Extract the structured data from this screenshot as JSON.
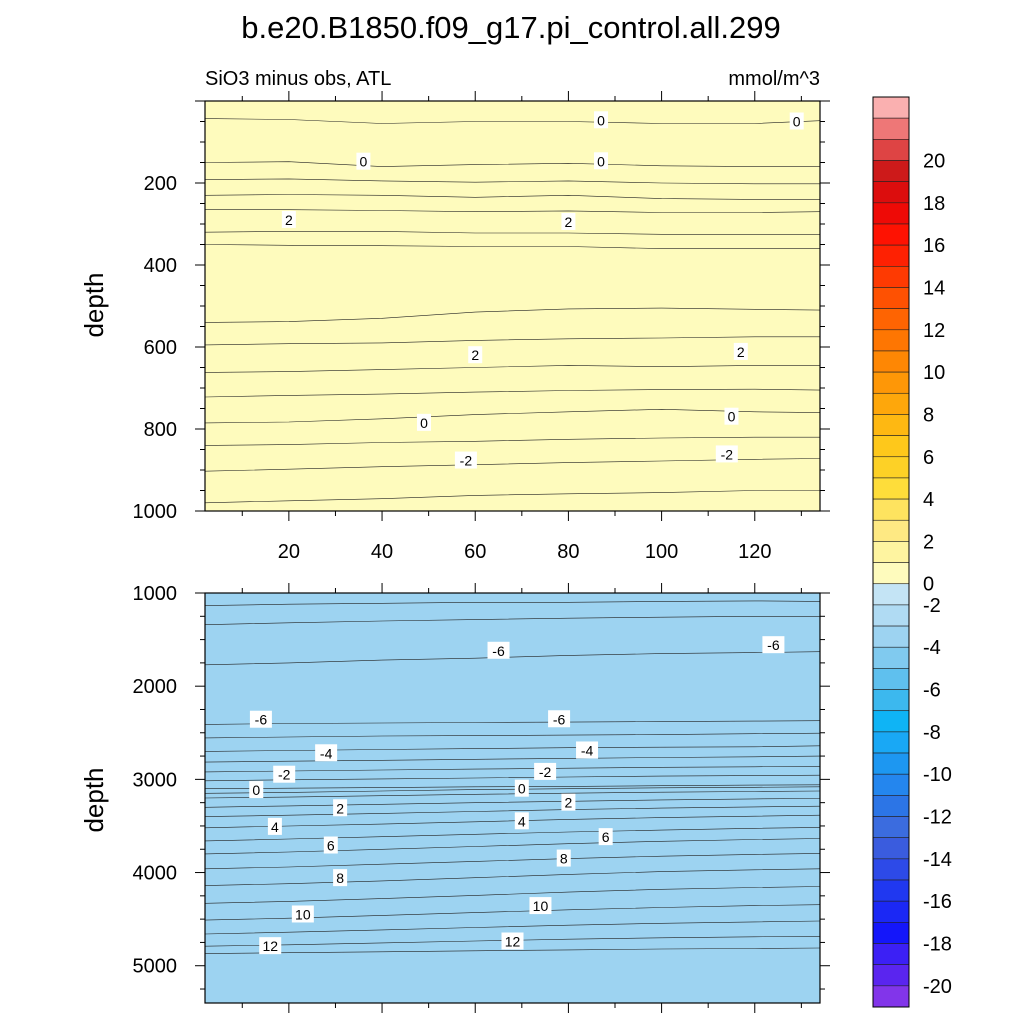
{
  "title": "b.e20.B1850.f09_g17.pi_control.all.299",
  "colors": {
    "neg": [
      "#c4e4f5",
      "#b0dbf3",
      "#9dd3f1",
      "#80caef",
      "#5fc0ee",
      "#3cb8ee",
      "#0fb4f5",
      "#19a8f5",
      "#1d97f1",
      "#2486ee",
      "#2c75e6",
      "#3b6cdf",
      "#3a5cde",
      "#2d4ae8",
      "#2038f0",
      "#1b28f5",
      "#1416fa",
      "#3c20f5",
      "#5a25ef",
      "#8235ea"
    ],
    "pos": [
      "#fefbbd",
      "#fef4a0",
      "#fee983",
      "#fee35f",
      "#fedd3a",
      "#fdd126",
      "#fec81b",
      "#feb812",
      "#fea70b",
      "#fe9707",
      "#fe8704",
      "#fe7602",
      "#fe6402",
      "#fe5102",
      "#fe3a02",
      "#fe2102",
      "#fe1202",
      "#ee0a06",
      "#dc0d0d",
      "#cd1a1a",
      "#de4444",
      "#ee7777",
      "#fab0b0"
    ]
  },
  "chart_data": [
    {
      "type": "heatmap",
      "panel": "upper",
      "title": "SiO3 minus obs, ATL",
      "units": "mmol/m^3",
      "xlabel": "",
      "ylabel": "depth",
      "xlim": [
        2,
        134
      ],
      "ylim": [
        0,
        1000
      ],
      "xticks": [
        20,
        40,
        60,
        80,
        100,
        120
      ],
      "yticks": [
        200,
        400,
        600,
        800,
        1000
      ],
      "x": [
        2,
        20,
        40,
        60,
        80,
        100,
        120,
        134
      ],
      "contours": [
        {
          "value": -4,
          "depths": [
            1000,
            1000,
            1000,
            1000,
            1000,
            1000,
            1000,
            1000
          ]
        },
        {
          "value": -3,
          "depths": [
            980,
            975,
            970,
            962,
            958,
            955,
            950,
            950
          ]
        },
        {
          "value": -2,
          "depths": [
            903,
            898,
            892,
            887,
            882,
            878,
            874,
            872
          ]
        },
        {
          "value": -1,
          "depths": [
            840,
            838,
            833,
            830,
            825,
            822,
            820,
            820
          ]
        },
        {
          "value": 0,
          "depths": [
            785,
            783,
            775,
            765,
            758,
            752,
            758,
            760
          ]
        },
        {
          "value": 1,
          "depths": [
            722,
            718,
            715,
            710,
            706,
            704,
            703,
            705
          ]
        },
        {
          "value": 2,
          "depths": [
            662,
            660,
            655,
            650,
            645,
            648,
            645,
            645
          ]
        },
        {
          "value": 3,
          "depths": [
            595,
            592,
            590,
            584,
            580,
            578,
            575,
            575
          ]
        },
        {
          "value": 4,
          "depths": [
            540,
            538,
            530,
            515,
            507,
            505,
            508,
            510
          ]
        },
        {
          "value": 3,
          "depths": [
            350,
            352,
            353,
            355,
            355,
            360,
            360,
            360
          ]
        },
        {
          "value": 2,
          "depths": [
            320,
            318,
            318,
            322,
            322,
            325,
            325,
            325
          ]
        },
        {
          "value": 1,
          "depths": [
            265,
            265,
            267,
            270,
            268,
            272,
            272,
            270
          ]
        },
        {
          "value": 0,
          "depths": [
            230,
            228,
            230,
            235,
            230,
            238,
            240,
            240
          ]
        },
        {
          "value": -1,
          "depths": [
            192,
            190,
            195,
            198,
            195,
            200,
            202,
            202
          ]
        },
        {
          "value": 0,
          "depths": [
            150,
            148,
            160,
            155,
            152,
            158,
            160,
            160
          ]
        },
        {
          "value": -1,
          "depths": [
            43,
            45,
            55,
            50,
            50,
            55,
            55,
            48
          ]
        },
        {
          "value": 0,
          "depths": [
            0,
            0,
            0,
            0,
            0,
            0,
            0,
            0
          ]
        }
      ],
      "labels": [
        {
          "text": "0",
          "x": 87,
          "depth": 47
        },
        {
          "text": "0",
          "x": 129,
          "depth": 50
        },
        {
          "text": "0",
          "x": 36,
          "depth": 148
        },
        {
          "text": "0",
          "x": 87,
          "depth": 147
        },
        {
          "text": "2",
          "x": 20,
          "depth": 290
        },
        {
          "text": "2",
          "x": 80,
          "depth": 295
        },
        {
          "text": "2",
          "x": 60,
          "depth": 620
        },
        {
          "text": "2",
          "x": 117,
          "depth": 612
        },
        {
          "text": "0",
          "x": 49,
          "depth": 785
        },
        {
          "text": "0",
          "x": 115,
          "depth": 770
        },
        {
          "text": "-2",
          "x": 58,
          "depth": 877
        },
        {
          "text": "-2",
          "x": 114,
          "depth": 862
        }
      ]
    },
    {
      "type": "heatmap",
      "panel": "lower",
      "title": "",
      "xlabel": "",
      "ylabel": "depth",
      "xlim": [
        2,
        134
      ],
      "ylim": [
        1000,
        5400
      ],
      "yticks": [
        1000,
        2000,
        3000,
        4000,
        5000
      ],
      "x": [
        2,
        20,
        40,
        60,
        80,
        100,
        120,
        134
      ],
      "contours": [
        {
          "value": -3,
          "depths": [
            1000,
            1000,
            1000,
            1000,
            1000,
            1000,
            1000,
            1000
          ]
        },
        {
          "value": -4,
          "depths": [
            1135,
            1120,
            1110,
            1100,
            1100,
            1090,
            1085,
            1090
          ]
        },
        {
          "value": -5,
          "depths": [
            1340,
            1320,
            1300,
            1285,
            1270,
            1260,
            1250,
            1250
          ]
        },
        {
          "value": -6,
          "depths": [
            1770,
            1750,
            1720,
            1700,
            1670,
            1650,
            1640,
            1630
          ]
        },
        {
          "value": -7,
          "depths": [
            2410,
            2400,
            2395,
            2390,
            2385,
            2380,
            2375,
            2370
          ]
        },
        {
          "value": -6,
          "depths": [
            2555,
            2545,
            2535,
            2530,
            2525,
            2520,
            2510,
            2505
          ]
        },
        {
          "value": -5,
          "depths": [
            2700,
            2690,
            2680,
            2670,
            2660,
            2655,
            2650,
            2640
          ]
        },
        {
          "value": -4,
          "depths": [
            2815,
            2805,
            2795,
            2785,
            2775,
            2765,
            2758,
            2750
          ]
        },
        {
          "value": -3,
          "depths": [
            2920,
            2910,
            2900,
            2890,
            2880,
            2870,
            2865,
            2860
          ]
        },
        {
          "value": -2,
          "depths": [
            3015,
            3005,
            2995,
            2985,
            2975,
            2965,
            2960,
            2955
          ]
        },
        {
          "value": -1,
          "depths": [
            3100,
            3095,
            3088,
            3080,
            3075,
            3068,
            3062,
            3058
          ]
        },
        {
          "value": 0,
          "depths": [
            3150,
            3140,
            3125,
            3110,
            3100,
            3090,
            3085,
            3080
          ]
        },
        {
          "value": 1,
          "depths": [
            3200,
            3190,
            3175,
            3160,
            3148,
            3138,
            3130,
            3125
          ]
        },
        {
          "value": 2,
          "depths": [
            3300,
            3285,
            3268,
            3250,
            3235,
            3220,
            3210,
            3205
          ]
        },
        {
          "value": 3,
          "depths": [
            3400,
            3385,
            3365,
            3345,
            3325,
            3308,
            3295,
            3288
          ]
        },
        {
          "value": 4,
          "depths": [
            3520,
            3500,
            3480,
            3455,
            3430,
            3410,
            3395,
            3385
          ]
        },
        {
          "value": 5,
          "depths": [
            3660,
            3640,
            3615,
            3590,
            3565,
            3545,
            3525,
            3515
          ]
        },
        {
          "value": 6,
          "depths": [
            3800,
            3780,
            3750,
            3720,
            3690,
            3665,
            3645,
            3635
          ]
        },
        {
          "value": 7,
          "depths": [
            3960,
            3940,
            3910,
            3880,
            3850,
            3825,
            3805,
            3795
          ]
        },
        {
          "value": 8,
          "depths": [
            4140,
            4120,
            4090,
            4055,
            4020,
            3990,
            3970,
            3960
          ]
        },
        {
          "value": 9,
          "depths": [
            4330,
            4310,
            4280,
            4245,
            4210,
            4180,
            4160,
            4150
          ]
        },
        {
          "value": 10,
          "depths": [
            4510,
            4490,
            4460,
            4430,
            4400,
            4375,
            4355,
            4345
          ]
        },
        {
          "value": 11,
          "depths": [
            4660,
            4640,
            4615,
            4590,
            4565,
            4545,
            4530,
            4520
          ]
        },
        {
          "value": 12,
          "depths": [
            4790,
            4775,
            4755,
            4735,
            4715,
            4700,
            4690,
            4685
          ]
        },
        {
          "value": 13,
          "depths": [
            4870,
            4860,
            4850,
            4840,
            4830,
            4820,
            4815,
            4810
          ]
        },
        {
          "value": 14,
          "depths": [
            5400,
            5400,
            5400,
            5400,
            5400,
            5400,
            5400,
            5400
          ]
        }
      ],
      "labels": [
        {
          "text": "-6",
          "x": 65,
          "depth": 1620
        },
        {
          "text": "-6",
          "x": 124,
          "depth": 1560
        },
        {
          "text": "-6",
          "x": 14,
          "depth": 2360
        },
        {
          "text": "-6",
          "x": 78,
          "depth": 2355
        },
        {
          "text": "-4",
          "x": 28,
          "depth": 2720
        },
        {
          "text": "-4",
          "x": 84,
          "depth": 2690
        },
        {
          "text": "-2",
          "x": 19,
          "depth": 2950
        },
        {
          "text": "-2",
          "x": 75,
          "depth": 2920
        },
        {
          "text": "0",
          "x": 13,
          "depth": 3115
        },
        {
          "text": "0",
          "x": 70,
          "depth": 3100
        },
        {
          "text": "2",
          "x": 31,
          "depth": 3310
        },
        {
          "text": "2",
          "x": 80,
          "depth": 3250
        },
        {
          "text": "4",
          "x": 17,
          "depth": 3510
        },
        {
          "text": "4",
          "x": 70,
          "depth": 3450
        },
        {
          "text": "6",
          "x": 29,
          "depth": 3710
        },
        {
          "text": "6",
          "x": 88,
          "depth": 3620
        },
        {
          "text": "8",
          "x": 31,
          "depth": 4060
        },
        {
          "text": "8",
          "x": 79,
          "depth": 3850
        },
        {
          "text": "10",
          "x": 23,
          "depth": 4450
        },
        {
          "text": "10",
          "x": 74,
          "depth": 4360
        },
        {
          "text": "12",
          "x": 16,
          "depth": 4790
        },
        {
          "text": "12",
          "x": 68,
          "depth": 4740
        }
      ]
    }
  ],
  "colorbar": {
    "ticks": [
      "20",
      "18",
      "16",
      "14",
      "12",
      "10",
      "8",
      "6",
      "4",
      "2",
      "0",
      "-2",
      "-4",
      "-6",
      "-8",
      "-10",
      "-12",
      "-14",
      "-16",
      "-18",
      "-20"
    ]
  }
}
